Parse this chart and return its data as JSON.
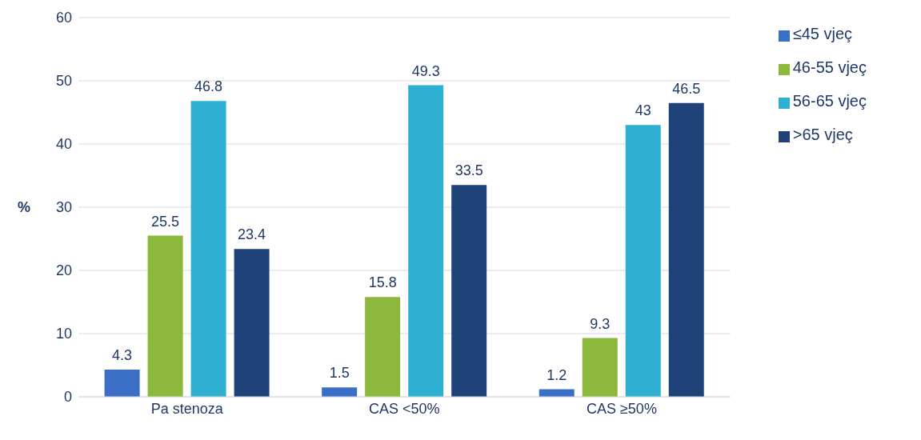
{
  "chart_data": {
    "type": "bar",
    "ylabel": "%",
    "categories": [
      "Pa stenoza",
      "CAS <50%",
      "CAS ≥50%"
    ],
    "series": [
      {
        "name": "≤45 vjeç",
        "color": "#3b6fc6",
        "values": [
          4.3,
          1.5,
          1.2
        ]
      },
      {
        "name": "46-55 vjeç",
        "color": "#8cb83c",
        "values": [
          25.5,
          15.8,
          9.3
        ]
      },
      {
        "name": "56-65 vjeç",
        "color": "#2eb0d2",
        "values": [
          46.8,
          49.3,
          43
        ]
      },
      {
        "name": ">65 vjeç",
        "color": "#1f4279",
        "values": [
          23.4,
          33.5,
          46.5
        ]
      }
    ],
    "ylim": [
      0,
      60
    ],
    "yticks": [
      0,
      10,
      20,
      30,
      40,
      50,
      60
    ],
    "grid": "y",
    "legend": "top right",
    "data_labels": true
  }
}
